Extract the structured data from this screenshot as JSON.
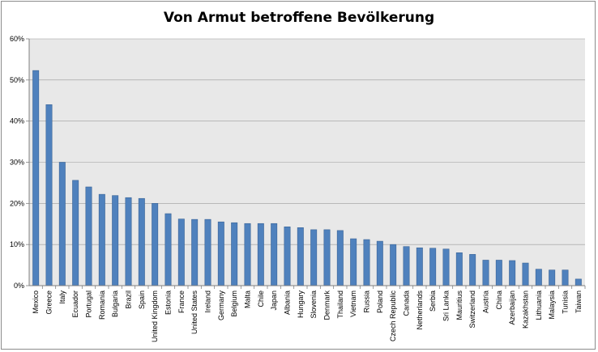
{
  "chart_data": {
    "type": "bar",
    "title": "Von Armut betroffene Bevölkerung",
    "xlabel": "",
    "ylabel": "",
    "ylim": [
      0,
      0.6
    ],
    "yticks": [
      "0%",
      "10%",
      "20%",
      "30%",
      "40%",
      "50%",
      "60%"
    ],
    "grid": true,
    "bar_color": "#4f81bd",
    "plot_background": "#e8e8e8",
    "categories": [
      "Mexico",
      "Greece",
      "Italy",
      "Ecuador",
      "Portugal",
      "Romania",
      "Bulgaria",
      "Brazil",
      "Spain",
      "United Kingdom",
      "Estonia",
      "France",
      "United States",
      "Ireland",
      "Germany",
      "Belgium",
      "Malta",
      "Chile",
      "Japan",
      "Albania",
      "Hungary",
      "Slovenia",
      "Denmark",
      "Thailand",
      "Vietnam",
      "Russia",
      "Poland",
      "Czech Republic",
      "Canada",
      "Netherlands",
      "Serbia",
      "Sri Lanka",
      "Mauritius",
      "Switzerland",
      "Austria",
      "China",
      "Azerbaijan",
      "Kazakhstan",
      "Lithuania",
      "Malaysia",
      "Tunisia",
      "Taiwan"
    ],
    "values": [
      0.523,
      0.44,
      0.3,
      0.256,
      0.24,
      0.222,
      0.219,
      0.214,
      0.212,
      0.2,
      0.175,
      0.162,
      0.161,
      0.161,
      0.155,
      0.153,
      0.151,
      0.151,
      0.151,
      0.143,
      0.141,
      0.136,
      0.136,
      0.134,
      0.114,
      0.112,
      0.108,
      0.1,
      0.095,
      0.092,
      0.091,
      0.089,
      0.08,
      0.076,
      0.062,
      0.062,
      0.061,
      0.055,
      0.04,
      0.038,
      0.038,
      0.016
    ]
  }
}
